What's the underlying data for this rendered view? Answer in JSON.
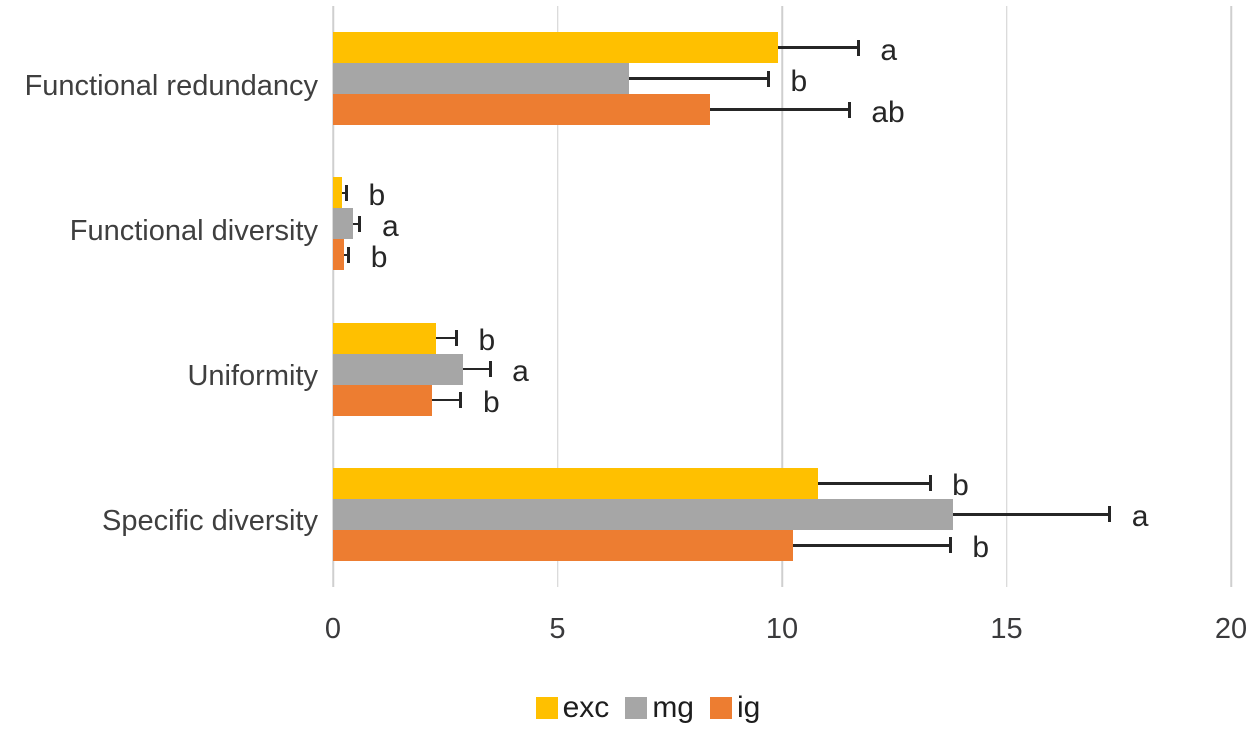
{
  "chart_data": {
    "type": "bar",
    "orientation": "horizontal",
    "title": "",
    "xlabel": "",
    "ylabel": "",
    "categories": [
      "Functional redundancy",
      "Functional diversity",
      "Uniformity",
      "Specific diversity"
    ],
    "series": [
      {
        "name": "exc",
        "color": "#FFC000",
        "values": [
          9.9,
          0.2,
          2.3,
          10.8
        ],
        "errors_plus": [
          1.8,
          0.1,
          0.45,
          2.5
        ],
        "sig_letters": [
          "a",
          "b",
          "b",
          "b"
        ]
      },
      {
        "name": "mg",
        "color": "#A6A6A6",
        "values": [
          6.6,
          0.45,
          2.9,
          13.8
        ],
        "errors_plus": [
          3.1,
          0.15,
          0.6,
          3.5
        ],
        "sig_letters": [
          "b",
          "a",
          "a",
          "a"
        ]
      },
      {
        "name": "ig",
        "color": "#ED7D31",
        "values": [
          8.4,
          0.25,
          2.2,
          10.25
        ],
        "errors_plus": [
          3.1,
          0.1,
          0.65,
          3.5
        ],
        "sig_letters": [
          "ab",
          "b",
          "b",
          "b"
        ]
      }
    ],
    "x_axis": {
      "min": 0,
      "max": 20,
      "ticks": [
        "0",
        "5",
        "10",
        "15",
        "20"
      ]
    },
    "legend": {
      "position": "bottom",
      "entries": [
        "exc",
        "mg",
        "ig"
      ]
    },
    "grid": "vertical-only",
    "styles": {
      "gridline_color": "#CFCFCF",
      "error_bar_color": "#262626",
      "sig_letter_color": "#262626",
      "category_label_color": "#3f3f3f",
      "tick_label_color": "#3a3a3c",
      "background": "#ffffff"
    }
  }
}
